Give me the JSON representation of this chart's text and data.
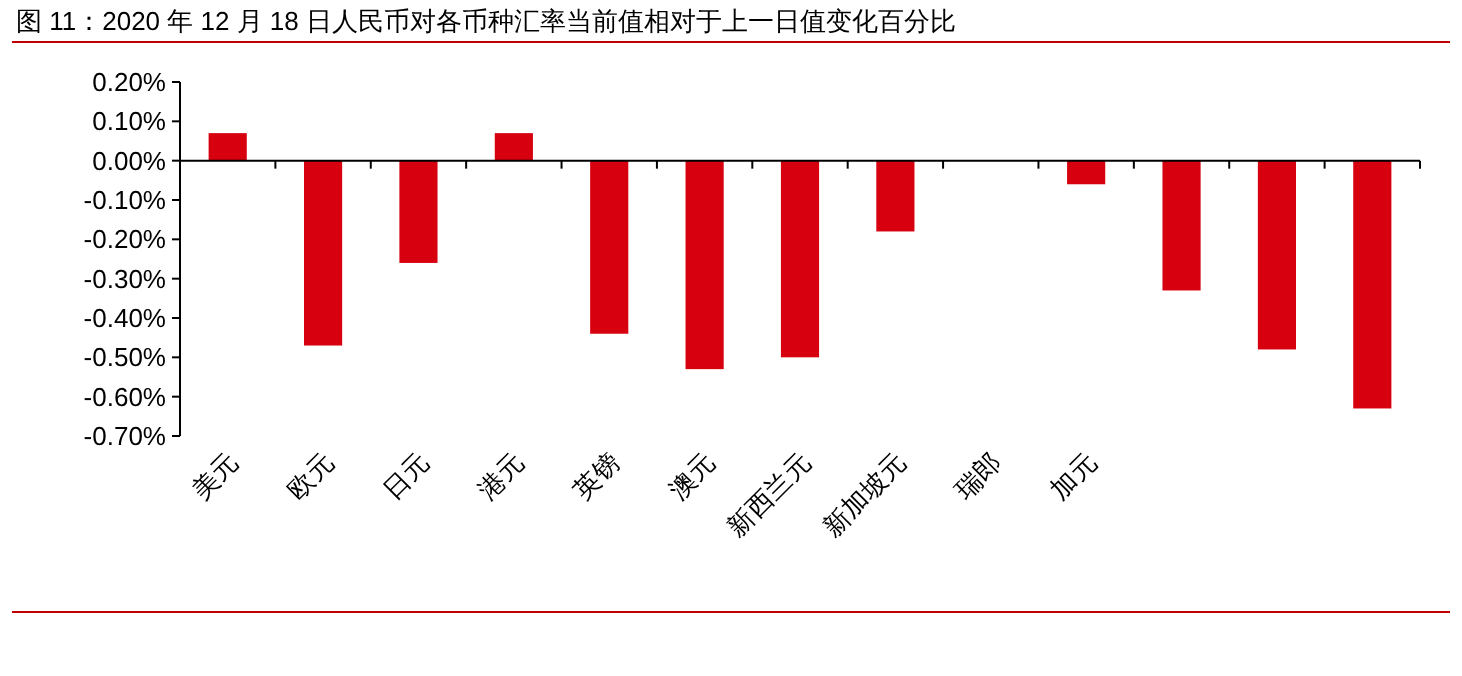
{
  "chart_data": {
    "type": "bar",
    "title": "图 11：2020 年 12 月 18 日人民币对各币种汇率当前值相对于上一日值变化百分比",
    "categories": [
      "美元",
      "欧元",
      "日元",
      "港元",
      "英镑",
      "澳元",
      "新西兰元",
      "新加坡元",
      "瑞郎",
      "加元",
      null,
      null,
      null
    ],
    "values": [
      0.07,
      -0.47,
      -0.26,
      0.07,
      -0.44,
      -0.53,
      -0.5,
      -0.18,
      0,
      -0.06,
      -0.33,
      -0.48,
      -0.63
    ],
    "color": "#d7000f",
    "ylim": [
      -0.7,
      0.2
    ],
    "yticks": [
      {
        "value": 0.2,
        "label": "0.20%"
      },
      {
        "value": 0.1,
        "label": "0.10%"
      },
      {
        "value": 0,
        "label": "0.00%"
      },
      {
        "value": -0.1,
        "label": "-0.10%"
      },
      {
        "value": -0.2,
        "label": "-0.20%"
      },
      {
        "value": -0.3,
        "label": "-0.30%"
      },
      {
        "value": -0.4,
        "label": "-0.40%"
      },
      {
        "value": -0.5,
        "label": "-0.50%"
      },
      {
        "value": -0.6,
        "label": "-0.60%"
      },
      {
        "value": -0.7,
        "label": "-0.70%"
      }
    ]
  }
}
